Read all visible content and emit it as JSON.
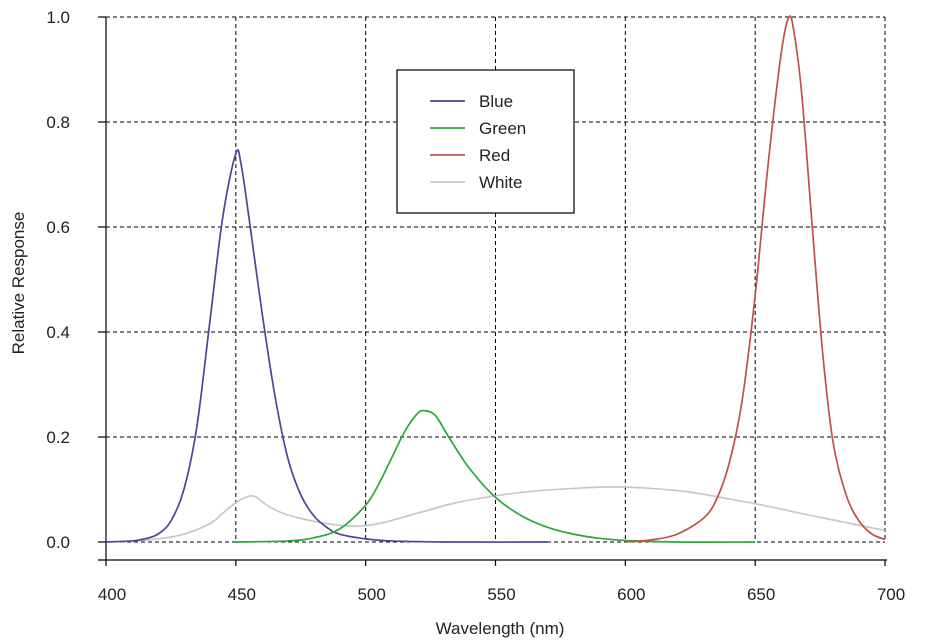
{
  "chart_data": {
    "type": "line",
    "title": "",
    "xlabel": "Wavelength (nm)",
    "ylabel": "Relative Response",
    "xlim": [
      400,
      700
    ],
    "ylim": [
      0,
      1.0
    ],
    "xticks": [
      400,
      450,
      500,
      550,
      600,
      650,
      700
    ],
    "yticks": [
      0.0,
      0.2,
      0.4,
      0.6,
      0.8,
      1.0
    ],
    "xtick_labels": [
      "400",
      "450",
      "500",
      "550",
      "600",
      "650",
      "700"
    ],
    "ytick_labels": [
      "0.0",
      "0.2",
      "0.4",
      "0.6",
      "0.8",
      "1.0"
    ],
    "grid": true,
    "legend_position": "top-center",
    "series": [
      {
        "name": "Blue",
        "color": "#4a4596",
        "points": [
          [
            400,
            0.0
          ],
          [
            410,
            0.002
          ],
          [
            415,
            0.006
          ],
          [
            420,
            0.015
          ],
          [
            425,
            0.04
          ],
          [
            430,
            0.1
          ],
          [
            435,
            0.22
          ],
          [
            440,
            0.42
          ],
          [
            445,
            0.62
          ],
          [
            450,
            0.74
          ],
          [
            452,
            0.72
          ],
          [
            455,
            0.62
          ],
          [
            460,
            0.44
          ],
          [
            465,
            0.28
          ],
          [
            470,
            0.16
          ],
          [
            475,
            0.09
          ],
          [
            480,
            0.05
          ],
          [
            485,
            0.028
          ],
          [
            490,
            0.015
          ],
          [
            500,
            0.006
          ],
          [
            510,
            0.002
          ],
          [
            530,
            0.0
          ],
          [
            570,
            0.0
          ]
        ]
      },
      {
        "name": "Green",
        "color": "#2aa838",
        "points": [
          [
            450,
            0.0
          ],
          [
            470,
            0.002
          ],
          [
            480,
            0.008
          ],
          [
            490,
            0.025
          ],
          [
            500,
            0.07
          ],
          [
            505,
            0.11
          ],
          [
            510,
            0.16
          ],
          [
            515,
            0.21
          ],
          [
            520,
            0.245
          ],
          [
            523,
            0.25
          ],
          [
            527,
            0.24
          ],
          [
            532,
            0.2
          ],
          [
            540,
            0.14
          ],
          [
            550,
            0.085
          ],
          [
            560,
            0.05
          ],
          [
            570,
            0.028
          ],
          [
            580,
            0.015
          ],
          [
            590,
            0.007
          ],
          [
            600,
            0.003
          ],
          [
            620,
            0.0
          ],
          [
            650,
            0.0
          ]
        ]
      },
      {
        "name": "Red",
        "color": "#c0504a",
        "points": [
          [
            600,
            0.0
          ],
          [
            610,
            0.004
          ],
          [
            620,
            0.015
          ],
          [
            630,
            0.045
          ],
          [
            635,
            0.08
          ],
          [
            640,
            0.15
          ],
          [
            645,
            0.27
          ],
          [
            650,
            0.47
          ],
          [
            655,
            0.72
          ],
          [
            660,
            0.93
          ],
          [
            663,
            1.0
          ],
          [
            665,
            0.97
          ],
          [
            668,
            0.85
          ],
          [
            672,
            0.6
          ],
          [
            676,
            0.36
          ],
          [
            680,
            0.19
          ],
          [
            685,
            0.09
          ],
          [
            690,
            0.04
          ],
          [
            695,
            0.015
          ],
          [
            700,
            0.005
          ]
        ]
      },
      {
        "name": "White",
        "color": "#c8c8c8",
        "points": [
          [
            400,
            0.0
          ],
          [
            410,
            0.002
          ],
          [
            420,
            0.006
          ],
          [
            430,
            0.015
          ],
          [
            440,
            0.035
          ],
          [
            445,
            0.055
          ],
          [
            450,
            0.075
          ],
          [
            455,
            0.087
          ],
          [
            458,
            0.085
          ],
          [
            462,
            0.07
          ],
          [
            468,
            0.055
          ],
          [
            475,
            0.045
          ],
          [
            485,
            0.035
          ],
          [
            495,
            0.03
          ],
          [
            505,
            0.035
          ],
          [
            520,
            0.055
          ],
          [
            535,
            0.075
          ],
          [
            550,
            0.088
          ],
          [
            565,
            0.097
          ],
          [
            580,
            0.102
          ],
          [
            595,
            0.105
          ],
          [
            610,
            0.102
          ],
          [
            625,
            0.095
          ],
          [
            640,
            0.082
          ],
          [
            655,
            0.068
          ],
          [
            670,
            0.052
          ],
          [
            685,
            0.037
          ],
          [
            700,
            0.022
          ]
        ]
      }
    ]
  }
}
